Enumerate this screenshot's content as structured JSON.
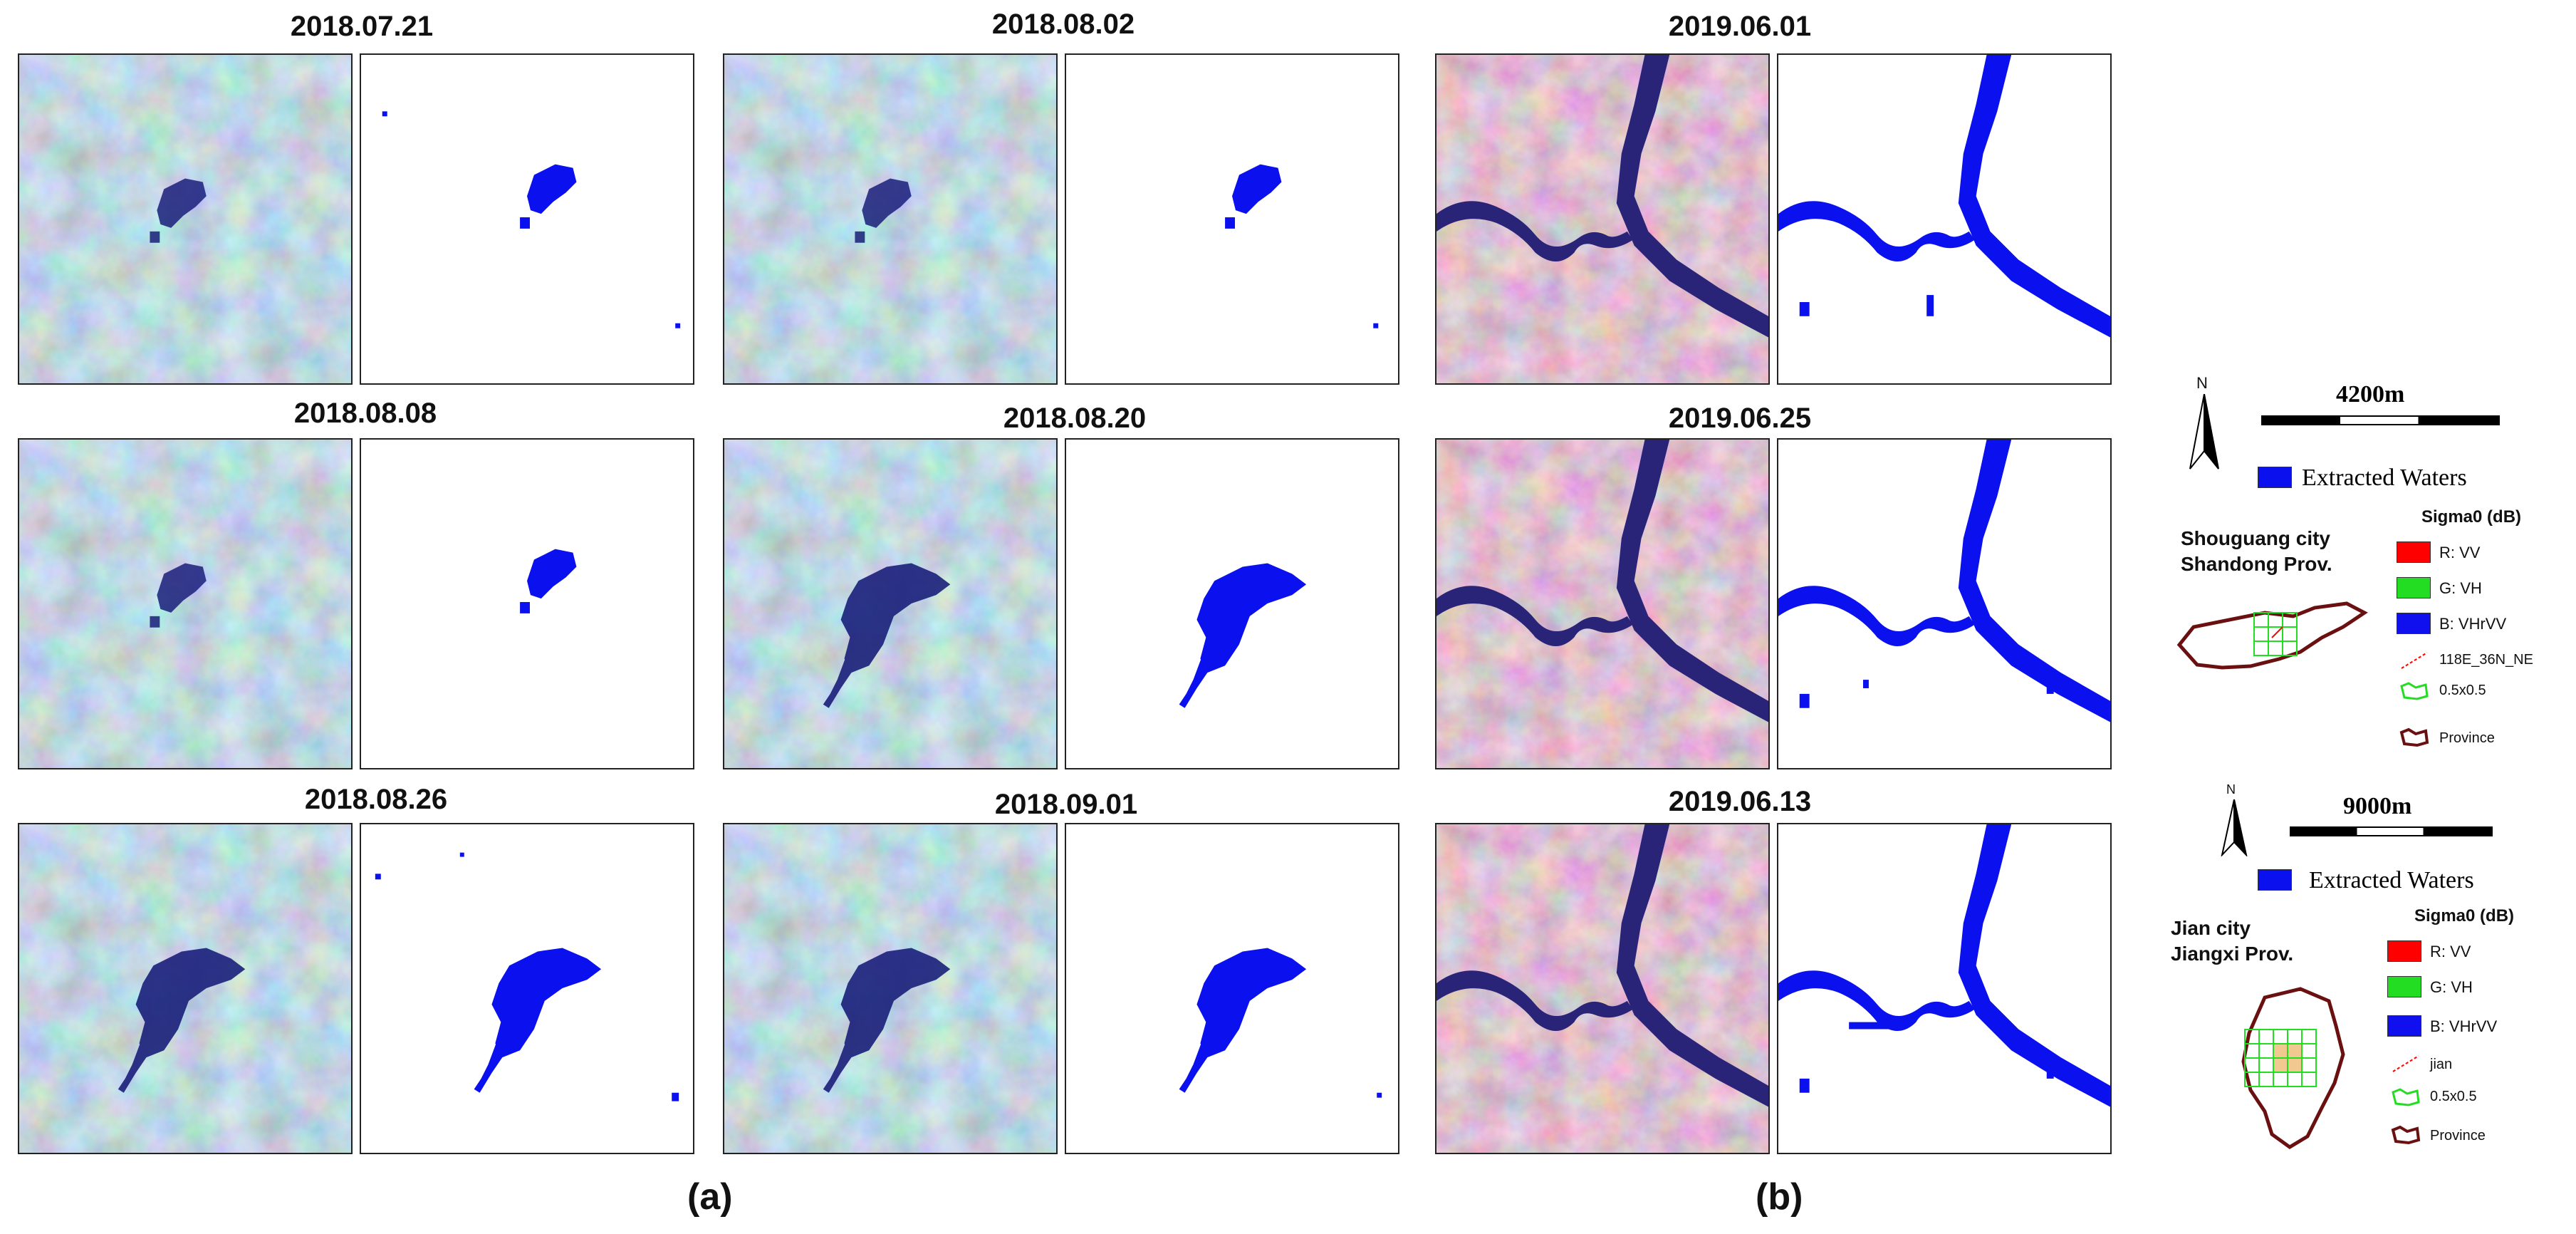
{
  "rows": [
    {
      "a1": "2018.07.21",
      "a2": "2018.08.02",
      "b": "2019.06.01"
    },
    {
      "a1": "2018.08.08",
      "a2": "2018.08.20",
      "b": "2019.06.25"
    },
    {
      "a1": "2018.08.26",
      "a2": "2018.09.01",
      "b": "2019.06.13"
    }
  ],
  "captions": {
    "a": "(a)",
    "b": "(b)"
  },
  "legend_top": {
    "north": "N",
    "scale": "4200m",
    "waters": "Extracted Waters",
    "city_line1": "Shouguang city",
    "city_line2": "Shandong Prov.",
    "sigma_title": "Sigma0 (dB)",
    "r": "R: VV",
    "g": "G: VH",
    "b": "B: VHrVV",
    "tile": "118E_36N_NE",
    "grid": "0.5x0.5",
    "province": "Province"
  },
  "legend_bottom": {
    "north": "N",
    "scale": "9000m",
    "waters": "Extracted Waters",
    "city_line1": "Jian city",
    "city_line2": "Jiangxi Prov.",
    "sigma_title": "Sigma0 (dB)",
    "r": "R: VV",
    "g": "G: VH",
    "b": "B: VHrVV",
    "tile": "jian",
    "grid": "0.5x0.5",
    "province": "Province"
  },
  "colors": {
    "water": "#0a10ee",
    "sar_a": "#7fa3c4",
    "sar_b": "#9c7a9e",
    "red": "#ff0000",
    "green": "#22dd22",
    "blue": "#1010ee",
    "province": "#6b1010"
  }
}
